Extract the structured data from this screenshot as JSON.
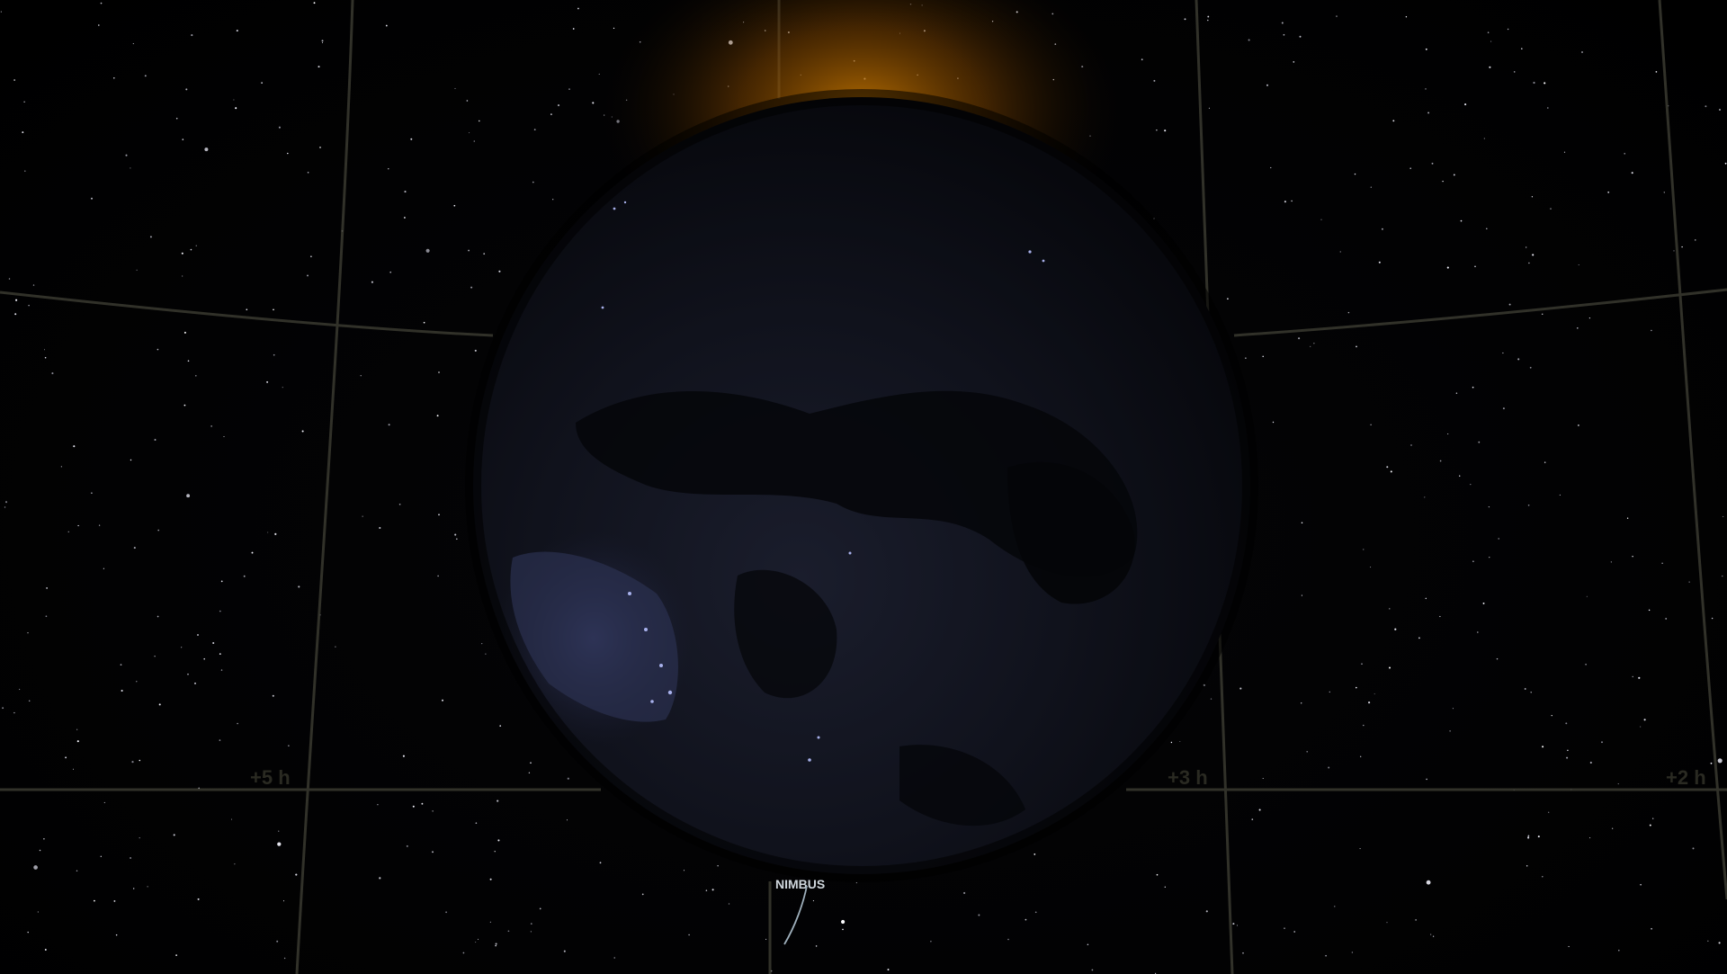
{
  "app": {
    "view": "3D space view of Earth night side with equatorial coordinate grid"
  },
  "grid": {
    "hour_labels": [
      "+5 h",
      "+3 h",
      "+2 h"
    ]
  },
  "satellite": {
    "label": "NIMBUS"
  },
  "colors": {
    "space": "#000000",
    "grid_line": "#3a3a30",
    "sun_glow": "#b86a00",
    "earth_dark": "#0d0f18",
    "city_lights": "#9aa6ff",
    "orbit_trail": "#9fb0bd"
  },
  "icons": {
    "earth": "earth-globe-icon",
    "sun_glow": "sun-corona-icon",
    "satellite": "satellite-marker-icon"
  }
}
